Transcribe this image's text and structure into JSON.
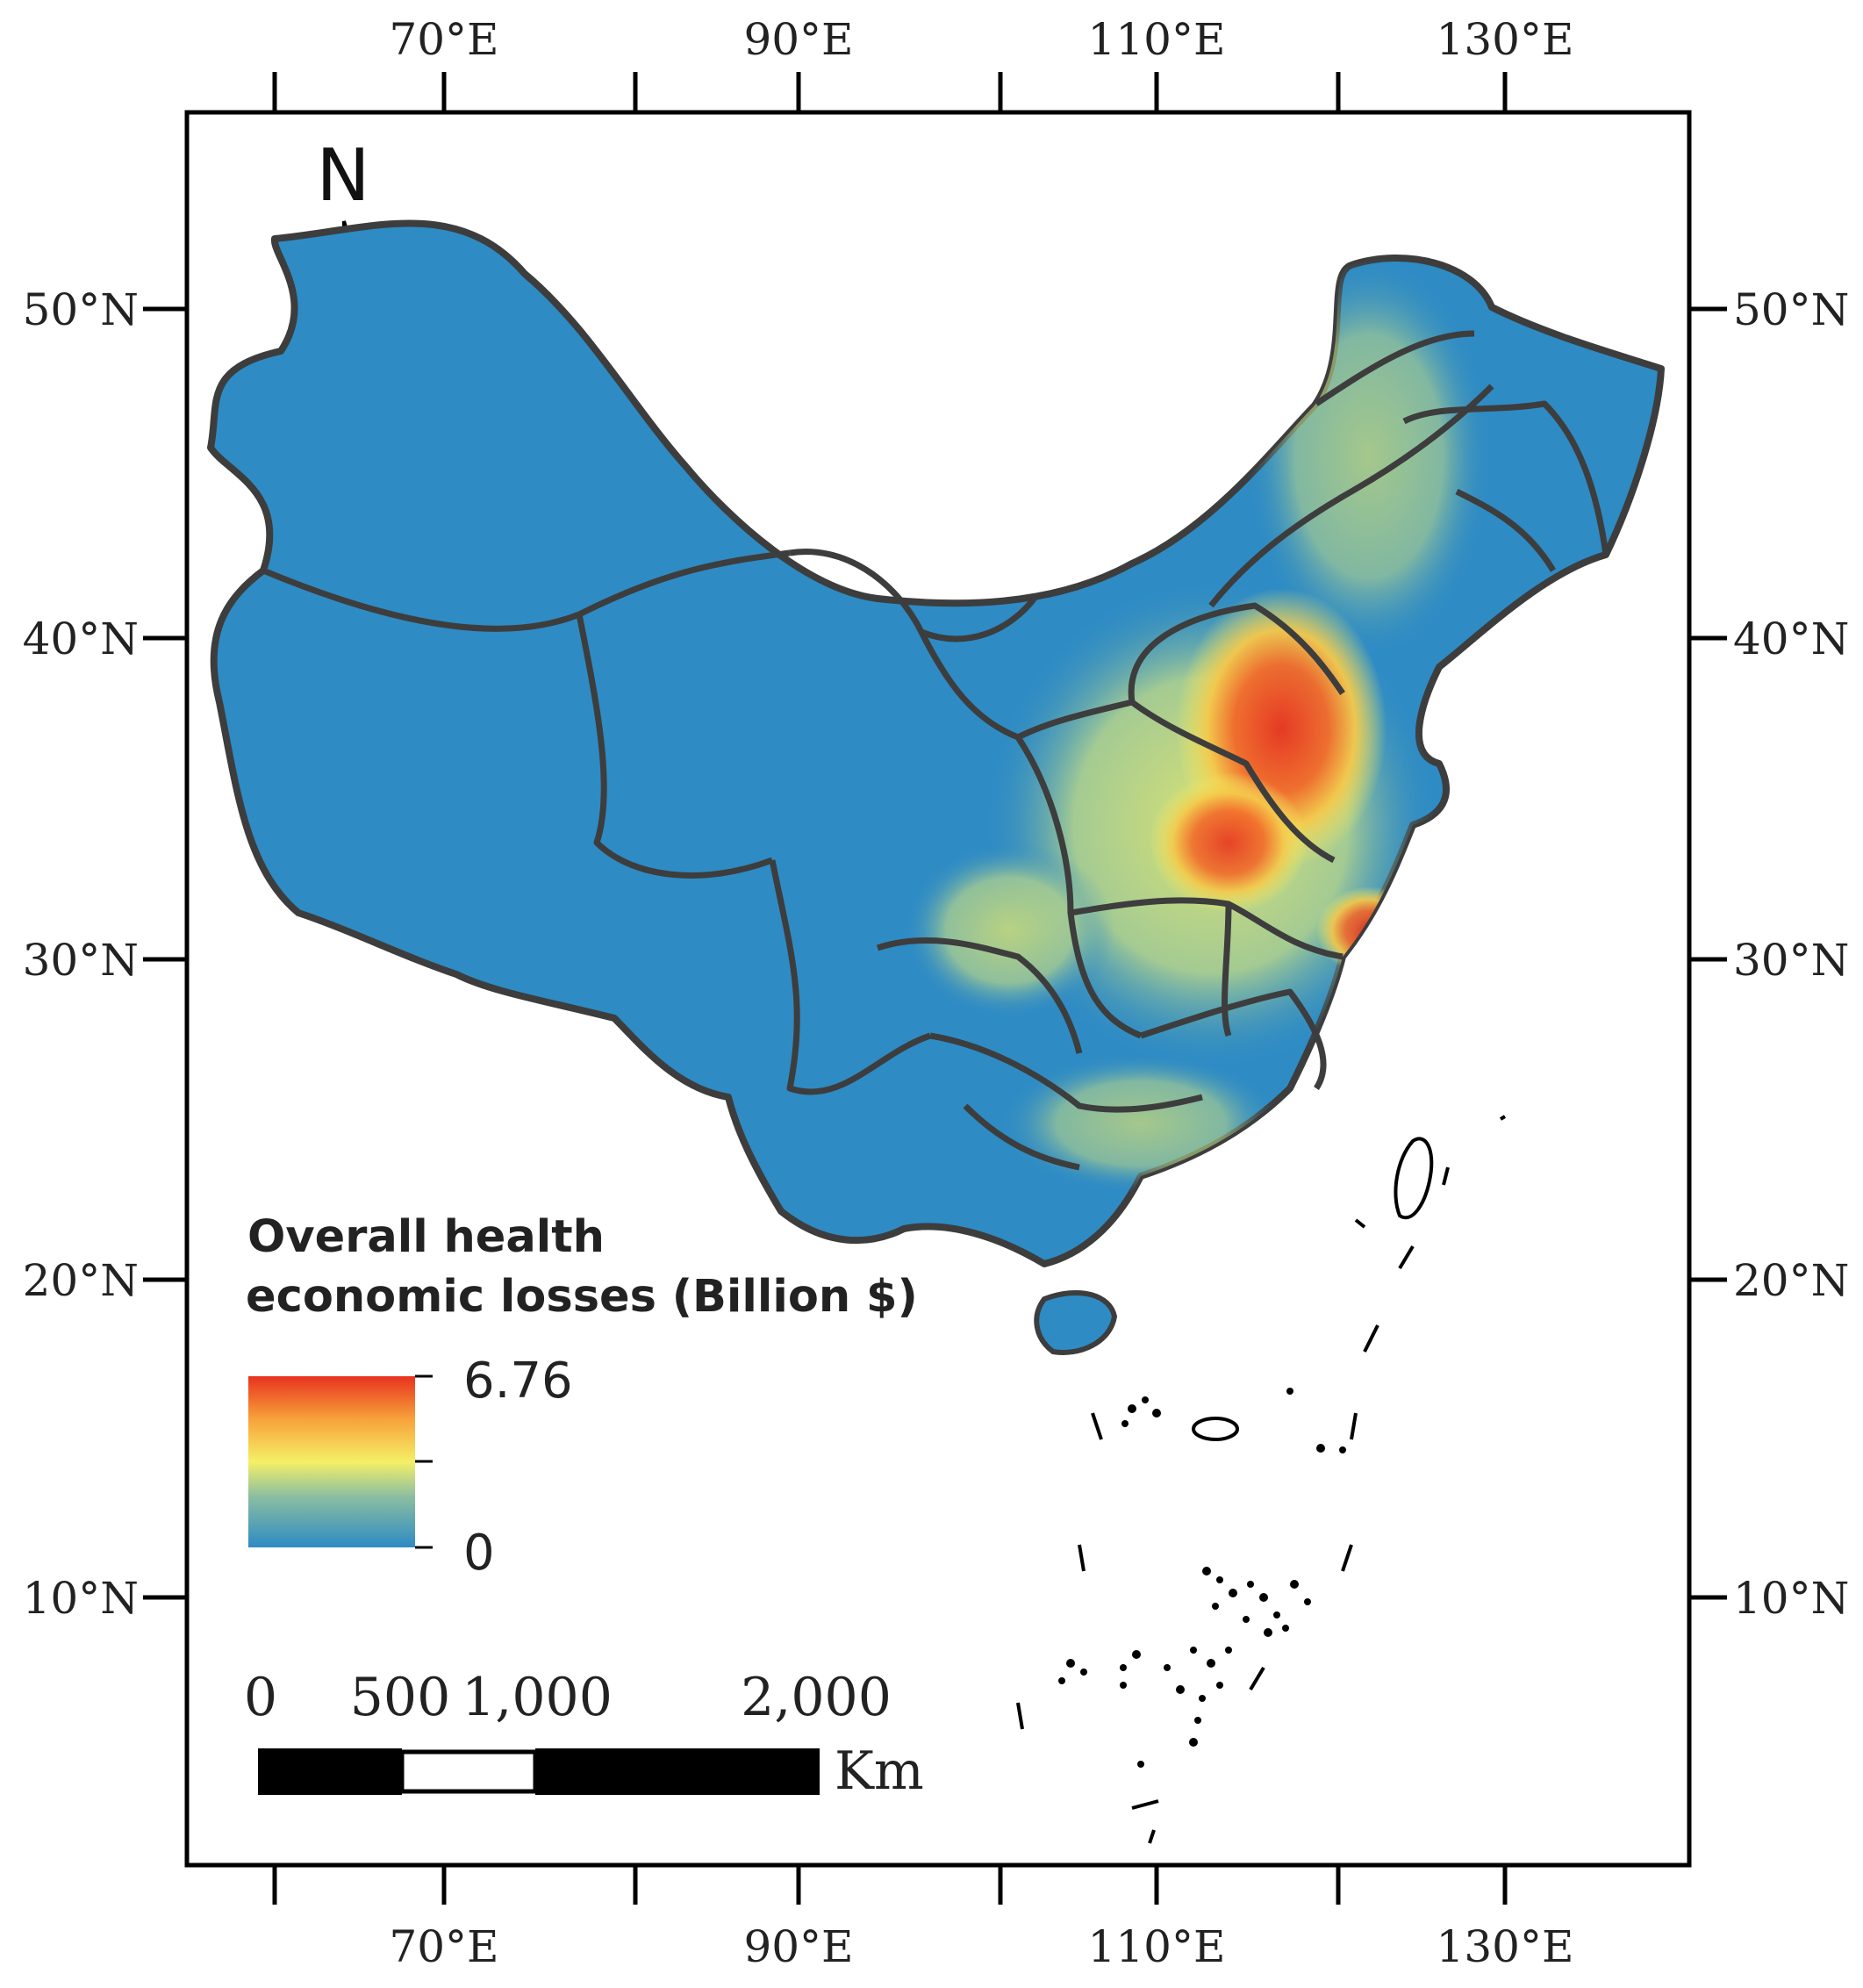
{
  "map": {
    "lon_labels": [
      "70°E",
      "90°E",
      "110°E",
      "130°E"
    ],
    "lat_labels": [
      "50°N",
      "40°N",
      "30°N",
      "20°N",
      "10°N"
    ],
    "north_label": "N",
    "colors": {
      "land": "#2e8bc4",
      "boundary": "#3d3d3d",
      "ramp": [
        "#2e8bc4",
        "#7fb3a6",
        "#f2ef62",
        "#f7a23a",
        "#e8321f"
      ]
    }
  },
  "legend": {
    "title_line1": "Overall health",
    "title_line2": "economic losses (Billion $)",
    "max_label": "6.76",
    "min_label": "0"
  },
  "scale_bar": {
    "labels": [
      "0",
      "500",
      "1,000",
      "2,000"
    ],
    "unit": "Km"
  }
}
